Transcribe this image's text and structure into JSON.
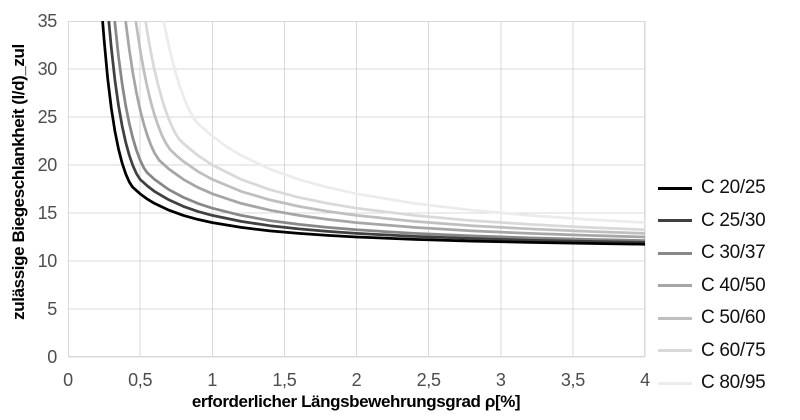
{
  "chart_data": {
    "type": "line",
    "xlabel": "erforderlicher Längsbewehrungsgrad ρ[%]",
    "ylabel": "zulässige Biegeschlankheit (l/d)_zul",
    "xlim": [
      0,
      4
    ],
    "ylim": [
      0,
      35
    ],
    "x_tick_values": [
      0,
      0.5,
      1,
      1.5,
      2,
      2.5,
      3,
      3.5,
      4
    ],
    "x_tick_labels": [
      "0",
      "0,5",
      "1",
      "1,5",
      "2",
      "2,5",
      "3",
      "3,5",
      "4"
    ],
    "y_tick_values": [
      0,
      5,
      10,
      15,
      20,
      25,
      30,
      35
    ],
    "y_tick_labels": [
      "0",
      "5",
      "10",
      "15",
      "20",
      "25",
      "30",
      "35"
    ],
    "grid": true,
    "grid_color": "#d9d9d9",
    "legend_position": "right",
    "series": [
      {
        "name": "C 20/25",
        "color": "#000000",
        "points": [
          [
            0.24,
            35
          ],
          [
            0.25,
            33.03
          ],
          [
            0.275,
            29.0
          ],
          [
            0.3,
            25.92
          ],
          [
            0.325,
            23.53
          ],
          [
            0.35,
            21.67
          ],
          [
            0.375,
            20.21
          ],
          [
            0.4,
            19.08
          ],
          [
            0.425,
            18.23
          ],
          [
            0.447,
            17.71
          ],
          [
            0.5,
            17.0
          ],
          [
            0.55,
            16.45
          ],
          [
            0.6,
            16.0
          ],
          [
            0.7,
            15.29
          ],
          [
            0.8,
            14.75
          ],
          [
            0.9,
            14.33
          ],
          [
            1.0,
            14.0
          ],
          [
            1.2,
            13.5
          ],
          [
            1.4,
            13.14
          ],
          [
            1.6,
            12.88
          ],
          [
            1.8,
            12.67
          ],
          [
            2.0,
            12.5
          ],
          [
            2.4,
            12.25
          ],
          [
            2.8,
            12.07
          ],
          [
            3.2,
            11.94
          ],
          [
            3.6,
            11.83
          ],
          [
            4.0,
            11.75
          ]
        ]
      },
      {
        "name": "C 25/30",
        "color": "#404040",
        "points": [
          [
            0.283,
            35
          ],
          [
            0.3,
            32.21
          ],
          [
            0.325,
            28.86
          ],
          [
            0.35,
            26.2
          ],
          [
            0.375,
            24.08
          ],
          [
            0.4,
            22.38
          ],
          [
            0.425,
            21.01
          ],
          [
            0.45,
            19.93
          ],
          [
            0.475,
            19.09
          ],
          [
            0.5,
            18.5
          ],
          [
            0.55,
            17.82
          ],
          [
            0.6,
            17.25
          ],
          [
            0.7,
            16.36
          ],
          [
            0.8,
            15.69
          ],
          [
            0.9,
            15.17
          ],
          [
            1.0,
            14.75
          ],
          [
            1.2,
            14.13
          ],
          [
            1.4,
            13.68
          ],
          [
            1.6,
            13.34
          ],
          [
            1.8,
            13.08
          ],
          [
            2.0,
            12.88
          ],
          [
            2.4,
            12.56
          ],
          [
            2.8,
            12.34
          ],
          [
            3.2,
            12.17
          ],
          [
            3.6,
            12.04
          ],
          [
            4.0,
            11.94
          ]
        ]
      },
      {
        "name": "C 30/37",
        "color": "#888888",
        "points": [
          [
            0.324,
            35
          ],
          [
            0.35,
            31.3
          ],
          [
            0.375,
            28.48
          ],
          [
            0.4,
            26.18
          ],
          [
            0.425,
            24.31
          ],
          [
            0.45,
            22.77
          ],
          [
            0.475,
            21.52
          ],
          [
            0.5,
            20.52
          ],
          [
            0.525,
            19.73
          ],
          [
            0.548,
            19.22
          ],
          [
            0.6,
            18.5
          ],
          [
            0.7,
            17.43
          ],
          [
            0.8,
            16.63
          ],
          [
            0.9,
            16.0
          ],
          [
            1.0,
            15.5
          ],
          [
            1.2,
            14.75
          ],
          [
            1.4,
            14.21
          ],
          [
            1.6,
            13.81
          ],
          [
            1.8,
            13.5
          ],
          [
            2.0,
            13.25
          ],
          [
            2.4,
            12.88
          ],
          [
            2.8,
            12.61
          ],
          [
            3.2,
            12.41
          ],
          [
            3.6,
            12.25
          ],
          [
            4.0,
            12.13
          ]
        ]
      },
      {
        "name": "C 40/50",
        "color": "#a6a6a6",
        "points": [
          [
            0.399,
            35
          ],
          [
            0.425,
            32.02
          ],
          [
            0.45,
            29.56
          ],
          [
            0.475,
            27.49
          ],
          [
            0.5,
            25.76
          ],
          [
            0.525,
            24.3
          ],
          [
            0.55,
            23.08
          ],
          [
            0.575,
            22.07
          ],
          [
            0.6,
            21.25
          ],
          [
            0.632,
            20.49
          ],
          [
            0.7,
            19.57
          ],
          [
            0.8,
            18.5
          ],
          [
            0.9,
            17.67
          ],
          [
            1.0,
            17.0
          ],
          [
            1.2,
            16.0
          ],
          [
            1.4,
            15.29
          ],
          [
            1.6,
            14.75
          ],
          [
            1.8,
            14.33
          ],
          [
            2.0,
            14.0
          ],
          [
            2.4,
            13.5
          ],
          [
            2.8,
            13.14
          ],
          [
            3.2,
            12.88
          ],
          [
            3.6,
            12.67
          ],
          [
            4.0,
            12.5
          ]
        ]
      },
      {
        "name": "C 50/60",
        "color": "#bfbfbf",
        "points": [
          [
            0.47,
            35
          ],
          [
            0.5,
            32.03
          ],
          [
            0.525,
            29.91
          ],
          [
            0.55,
            28.09
          ],
          [
            0.575,
            26.54
          ],
          [
            0.6,
            25.21
          ],
          [
            0.625,
            24.08
          ],
          [
            0.65,
            23.13
          ],
          [
            0.675,
            22.35
          ],
          [
            0.707,
            21.61
          ],
          [
            0.75,
            21.0
          ],
          [
            0.8,
            20.38
          ],
          [
            0.9,
            19.33
          ],
          [
            1.0,
            18.5
          ],
          [
            1.2,
            17.25
          ],
          [
            1.4,
            16.36
          ],
          [
            1.6,
            15.69
          ],
          [
            1.8,
            15.17
          ],
          [
            2.0,
            14.75
          ],
          [
            2.4,
            14.13
          ],
          [
            2.8,
            13.68
          ],
          [
            3.2,
            13.34
          ],
          [
            3.6,
            13.08
          ],
          [
            4.0,
            12.88
          ]
        ]
      },
      {
        "name": "C 60/75",
        "color": "#d9d9d9",
        "points": [
          [
            0.538,
            35
          ],
          [
            0.55,
            33.83
          ],
          [
            0.575,
            31.72
          ],
          [
            0.6,
            29.89
          ],
          [
            0.625,
            28.3
          ],
          [
            0.65,
            26.93
          ],
          [
            0.675,
            25.74
          ],
          [
            0.7,
            24.72
          ],
          [
            0.725,
            23.86
          ],
          [
            0.75,
            23.15
          ],
          [
            0.775,
            22.62
          ],
          [
            0.8,
            22.25
          ],
          [
            0.9,
            21.0
          ],
          [
            1.0,
            20.0
          ],
          [
            1.2,
            18.5
          ],
          [
            1.4,
            17.43
          ],
          [
            1.6,
            16.63
          ],
          [
            1.8,
            16.0
          ],
          [
            2.0,
            15.5
          ],
          [
            2.4,
            14.75
          ],
          [
            2.8,
            14.21
          ],
          [
            3.2,
            13.81
          ],
          [
            3.6,
            13.5
          ],
          [
            4.0,
            13.25
          ]
        ]
      },
      {
        "name": "C 80/95",
        "color": "#ececec",
        "points": [
          [
            0.663,
            35
          ],
          [
            0.675,
            34.08
          ],
          [
            0.7,
            32.33
          ],
          [
            0.725,
            30.79
          ],
          [
            0.75,
            29.42
          ],
          [
            0.775,
            28.22
          ],
          [
            0.8,
            27.16
          ],
          [
            0.825,
            26.24
          ],
          [
            0.85,
            25.46
          ],
          [
            0.875,
            24.81
          ],
          [
            0.9,
            24.33
          ],
          [
            1.0,
            23.0
          ],
          [
            1.1,
            21.91
          ],
          [
            1.2,
            21.0
          ],
          [
            1.4,
            19.57
          ],
          [
            1.6,
            18.5
          ],
          [
            1.8,
            17.67
          ],
          [
            2.0,
            17.0
          ],
          [
            2.4,
            16.0
          ],
          [
            2.8,
            15.29
          ],
          [
            3.2,
            14.75
          ],
          [
            3.6,
            14.33
          ],
          [
            4.0,
            14.0
          ]
        ]
      }
    ]
  }
}
